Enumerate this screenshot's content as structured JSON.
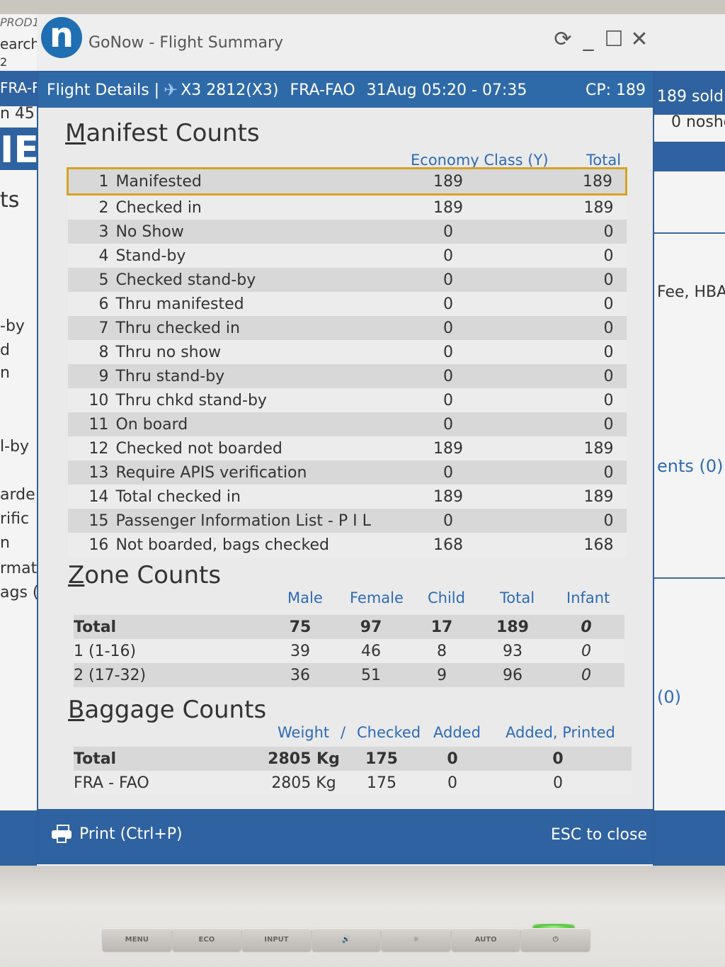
{
  "app": {
    "title": "GoNow - Flight Summary",
    "logo_letter": "n"
  },
  "background_left": [
    "PROD1",
    "earch",
    "2",
    "FRA-F",
    "n 45",
    "IE",
    "ts",
    "-by",
    "d",
    "n",
    "l-by",
    "arde",
    "rific",
    "n",
    "rmat",
    "ags ("
  ],
  "background_right": [
    "189 sold",
    "0 nosho",
    "Fee, HBA",
    "ents (0)",
    "(0)"
  ],
  "dialog": {
    "header_label": "Flight Details |",
    "flight": "X3 2812(X3)",
    "route": "FRA-FAO",
    "date_time": "31Aug 05:20 - 07:35",
    "cp": "CP: 189",
    "print_label": "Print (Ctrl+P)",
    "esc_label": "ESC to close"
  },
  "manifest": {
    "title": "Manifest Counts",
    "col_economy": "Economy Class (Y)",
    "col_total": "Total",
    "rows": [
      {
        "n": "1",
        "label": "Manifested",
        "y": "189",
        "total": "189"
      },
      {
        "n": "2",
        "label": "Checked in",
        "y": "189",
        "total": "189"
      },
      {
        "n": "3",
        "label": "No Show",
        "y": "0",
        "total": "0"
      },
      {
        "n": "4",
        "label": "Stand-by",
        "y": "0",
        "total": "0"
      },
      {
        "n": "5",
        "label": "Checked stand-by",
        "y": "0",
        "total": "0"
      },
      {
        "n": "6",
        "label": "Thru manifested",
        "y": "0",
        "total": "0"
      },
      {
        "n": "7",
        "label": "Thru checked in",
        "y": "0",
        "total": "0"
      },
      {
        "n": "8",
        "label": "Thru no show",
        "y": "0",
        "total": "0"
      },
      {
        "n": "9",
        "label": "Thru stand-by",
        "y": "0",
        "total": "0"
      },
      {
        "n": "10",
        "label": "Thru chkd stand-by",
        "y": "0",
        "total": "0"
      },
      {
        "n": "11",
        "label": "On board",
        "y": "0",
        "total": "0"
      },
      {
        "n": "12",
        "label": "Checked not boarded",
        "y": "189",
        "total": "189"
      },
      {
        "n": "13",
        "label": "Require APIS verification",
        "y": "0",
        "total": "0"
      },
      {
        "n": "14",
        "label": "Total checked in",
        "y": "189",
        "total": "189"
      },
      {
        "n": "15",
        "label": "Passenger Information List - P I L",
        "y": "0",
        "total": "0"
      },
      {
        "n": "16",
        "label": "Not boarded, bags checked",
        "y": "168",
        "total": "168"
      }
    ]
  },
  "zone": {
    "title": "Zone Counts",
    "cols": {
      "male": "Male",
      "female": "Female",
      "child": "Child",
      "total": "Total",
      "infant": "Infant"
    },
    "rows": [
      {
        "label": "Total",
        "male": "75",
        "female": "97",
        "child": "17",
        "total": "189",
        "infant": "0"
      },
      {
        "label": "1 (1-16)",
        "male": "39",
        "female": "46",
        "child": "8",
        "total": "93",
        "infant": "0"
      },
      {
        "label": "2 (17-32)",
        "male": "36",
        "female": "51",
        "child": "9",
        "total": "96",
        "infant": "0"
      }
    ]
  },
  "baggage": {
    "title": "Baggage Counts",
    "cols": {
      "weight": "Weight",
      "sep": "/",
      "checked": "Checked",
      "added": "Added",
      "added_printed": "Added, Printed"
    },
    "rows": [
      {
        "label": "Total",
        "weight": "2805 Kg",
        "checked": "175",
        "added": "0",
        "added_printed": "0"
      },
      {
        "label": "FRA - FAO",
        "weight": "2805 Kg",
        "checked": "175",
        "added": "0",
        "added_printed": "0"
      }
    ]
  },
  "monitor_buttons": [
    "MENU",
    "ECO",
    "INPUT",
    "🔊",
    "☼",
    "AUTO",
    "⏻"
  ],
  "colors": {
    "header_blue": "#2f6aa8",
    "accent_blue": "#2d6bb5",
    "highlight": "#d7a326"
  }
}
